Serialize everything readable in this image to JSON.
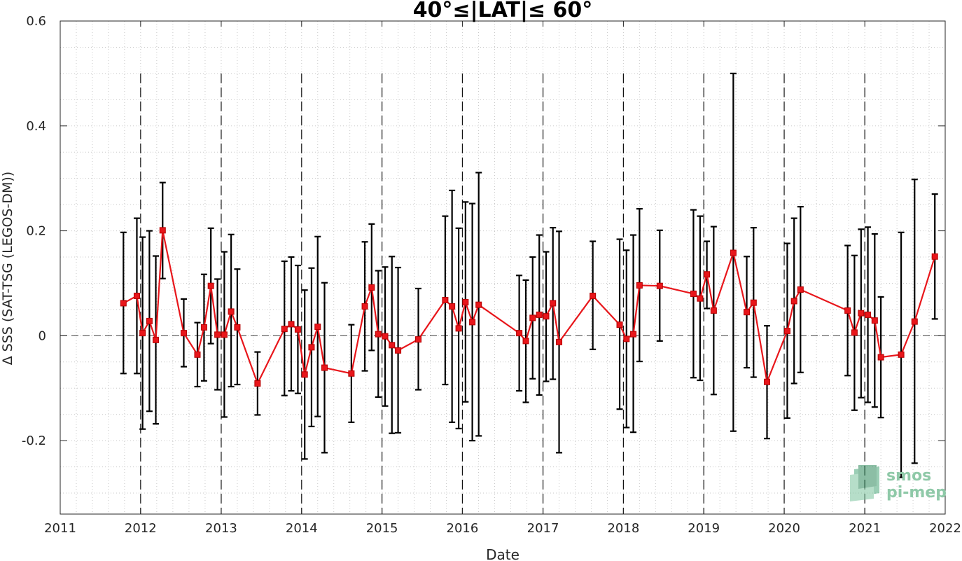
{
  "chart_data": {
    "type": "line",
    "title": "40°≤|LAT|≤ 60°",
    "xlabel": "Date",
    "ylabel": "Δ SSS (SAT-TSG (LEGOS-DM))",
    "xlim": [
      "2011-01-01",
      "2022-01-01"
    ],
    "ylim": [
      -0.34,
      0.6
    ],
    "x_ticks": [
      "2011",
      "2012",
      "2013",
      "2014",
      "2015",
      "2016",
      "2017",
      "2018",
      "2019",
      "2020",
      "2021",
      "2022"
    ],
    "y_ticks": [
      -0.2,
      0,
      0.2,
      0.4,
      0.6
    ],
    "y_tick_labels": [
      "-0.2",
      "0",
      "0.2",
      "0.4",
      "0.6"
    ],
    "grid": "minor dotted",
    "year_dividers": [
      "2012",
      "2013",
      "2014",
      "2015",
      "2016",
      "2017",
      "2018",
      "2019",
      "2020",
      "2021"
    ],
    "zero_line": 0,
    "series": [
      {
        "color": "#e8161b",
        "marker": "square",
        "errorbar_color": "#000000",
        "points": [
          {
            "x": "2011-10-15",
            "y": 0.062,
            "lo": -0.072,
            "hi": 0.197
          },
          {
            "x": "2011-12-15",
            "y": 0.076,
            "lo": -0.072,
            "hi": 0.224
          },
          {
            "x": "2012-01-10",
            "y": 0.005,
            "lo": -0.178,
            "hi": 0.188
          },
          {
            "x": "2012-02-10",
            "y": 0.028,
            "lo": -0.144,
            "hi": 0.2
          },
          {
            "x": "2012-03-10",
            "y": -0.008,
            "lo": -0.168,
            "hi": 0.152
          },
          {
            "x": "2012-04-10",
            "y": 0.201,
            "lo": 0.109,
            "hi": 0.292
          },
          {
            "x": "2012-07-15",
            "y": 0.005,
            "lo": -0.059,
            "hi": 0.07
          },
          {
            "x": "2012-09-15",
            "y": -0.036,
            "lo": -0.097,
            "hi": 0.025
          },
          {
            "x": "2012-10-15",
            "y": 0.016,
            "lo": -0.086,
            "hi": 0.117
          },
          {
            "x": "2012-11-15",
            "y": 0.095,
            "lo": -0.015,
            "hi": 0.205
          },
          {
            "x": "2012-12-15",
            "y": 0.002,
            "lo": -0.103,
            "hi": 0.108
          },
          {
            "x": "2013-01-15",
            "y": 0.002,
            "lo": -0.155,
            "hi": 0.16
          },
          {
            "x": "2013-02-15",
            "y": 0.046,
            "lo": -0.097,
            "hi": 0.193
          },
          {
            "x": "2013-03-15",
            "y": 0.016,
            "lo": -0.093,
            "hi": 0.127
          },
          {
            "x": "2013-06-15",
            "y": -0.091,
            "lo": -0.151,
            "hi": -0.031
          },
          {
            "x": "2013-10-15",
            "y": 0.013,
            "lo": -0.114,
            "hi": 0.142
          },
          {
            "x": "2013-11-15",
            "y": 0.022,
            "lo": -0.105,
            "hi": 0.15
          },
          {
            "x": "2013-12-15",
            "y": 0.012,
            "lo": -0.11,
            "hi": 0.134
          },
          {
            "x": "2014-01-15",
            "y": -0.074,
            "lo": -0.235,
            "hi": 0.087
          },
          {
            "x": "2014-02-15",
            "y": -0.022,
            "lo": -0.173,
            "hi": 0.129
          },
          {
            "x": "2014-03-15",
            "y": 0.017,
            "lo": -0.154,
            "hi": 0.189
          },
          {
            "x": "2014-04-15",
            "y": -0.061,
            "lo": -0.223,
            "hi": 0.101
          },
          {
            "x": "2014-08-15",
            "y": -0.072,
            "lo": -0.165,
            "hi": 0.021
          },
          {
            "x": "2014-10-15",
            "y": 0.056,
            "lo": -0.067,
            "hi": 0.179
          },
          {
            "x": "2014-11-15",
            "y": 0.092,
            "lo": -0.028,
            "hi": 0.213
          },
          {
            "x": "2014-12-15",
            "y": 0.003,
            "lo": -0.117,
            "hi": 0.124
          },
          {
            "x": "2015-01-15",
            "y": -0.001,
            "lo": -0.134,
            "hi": 0.131
          },
          {
            "x": "2015-02-15",
            "y": -0.018,
            "lo": -0.186,
            "hi": 0.151
          },
          {
            "x": "2015-03-15",
            "y": -0.028,
            "lo": -0.185,
            "hi": 0.13
          },
          {
            "x": "2015-06-15",
            "y": -0.007,
            "lo": -0.103,
            "hi": 0.09
          },
          {
            "x": "2015-10-15",
            "y": 0.068,
            "lo": -0.093,
            "hi": 0.228
          },
          {
            "x": "2015-11-15",
            "y": 0.056,
            "lo": -0.165,
            "hi": 0.277
          },
          {
            "x": "2015-12-15",
            "y": 0.014,
            "lo": -0.177,
            "hi": 0.205
          },
          {
            "x": "2016-01-15",
            "y": 0.064,
            "lo": -0.126,
            "hi": 0.255
          },
          {
            "x": "2016-02-15",
            "y": 0.026,
            "lo": -0.2,
            "hi": 0.252
          },
          {
            "x": "2016-03-15",
            "y": 0.059,
            "lo": -0.191,
            "hi": 0.311
          },
          {
            "x": "2016-09-15",
            "y": 0.005,
            "lo": -0.105,
            "hi": 0.115
          },
          {
            "x": "2016-10-15",
            "y": -0.01,
            "lo": -0.127,
            "hi": 0.106
          },
          {
            "x": "2016-11-15",
            "y": 0.034,
            "lo": -0.082,
            "hi": 0.15
          },
          {
            "x": "2016-12-15",
            "y": 0.04,
            "lo": -0.113,
            "hi": 0.192
          },
          {
            "x": "2017-01-15",
            "y": 0.037,
            "lo": -0.087,
            "hi": 0.16
          },
          {
            "x": "2017-02-15",
            "y": 0.062,
            "lo": -0.083,
            "hi": 0.206
          },
          {
            "x": "2017-03-15",
            "y": -0.012,
            "lo": -0.223,
            "hi": 0.199
          },
          {
            "x": "2017-08-15",
            "y": 0.076,
            "lo": -0.026,
            "hi": 0.18
          },
          {
            "x": "2017-12-15",
            "y": 0.021,
            "lo": -0.14,
            "hi": 0.184
          },
          {
            "x": "2018-01-15",
            "y": -0.006,
            "lo": -0.175,
            "hi": 0.163
          },
          {
            "x": "2018-02-15",
            "y": 0.003,
            "lo": -0.184,
            "hi": 0.192
          },
          {
            "x": "2018-03-15",
            "y": 0.096,
            "lo": -0.049,
            "hi": 0.242
          },
          {
            "x": "2018-06-15",
            "y": 0.095,
            "lo": -0.01,
            "hi": 0.201
          },
          {
            "x": "2018-11-15",
            "y": 0.08,
            "lo": -0.08,
            "hi": 0.24
          },
          {
            "x": "2018-12-15",
            "y": 0.071,
            "lo": -0.085,
            "hi": 0.228
          },
          {
            "x": "2019-01-15",
            "y": 0.117,
            "lo": 0.052,
            "hi": 0.18
          },
          {
            "x": "2019-02-15",
            "y": 0.048,
            "lo": -0.112,
            "hi": 0.208
          },
          {
            "x": "2019-05-15",
            "y": 0.158,
            "lo": -0.182,
            "hi": 0.5
          },
          {
            "x": "2019-07-15",
            "y": 0.045,
            "lo": -0.061,
            "hi": 0.151
          },
          {
            "x": "2019-08-15",
            "y": 0.063,
            "lo": -0.079,
            "hi": 0.206
          },
          {
            "x": "2019-10-15",
            "y": -0.088,
            "lo": -0.196,
            "hi": 0.019
          },
          {
            "x": "2020-01-15",
            "y": 0.009,
            "lo": -0.157,
            "hi": 0.176
          },
          {
            "x": "2020-02-15",
            "y": 0.066,
            "lo": -0.091,
            "hi": 0.224
          },
          {
            "x": "2020-03-15",
            "y": 0.088,
            "lo": -0.07,
            "hi": 0.246
          },
          {
            "x": "2020-10-15",
            "y": 0.048,
            "lo": -0.076,
            "hi": 0.172
          },
          {
            "x": "2020-11-15",
            "y": 0.006,
            "lo": -0.142,
            "hi": 0.153
          },
          {
            "x": "2020-12-15",
            "y": 0.043,
            "lo": -0.118,
            "hi": 0.203
          },
          {
            "x": "2021-01-15",
            "y": 0.04,
            "lo": -0.127,
            "hi": 0.207
          },
          {
            "x": "2021-02-15",
            "y": 0.029,
            "lo": -0.136,
            "hi": 0.194
          },
          {
            "x": "2021-03-15",
            "y": -0.041,
            "lo": -0.156,
            "hi": 0.074
          },
          {
            "x": "2021-06-15",
            "y": -0.036,
            "lo": -0.27,
            "hi": 0.197
          },
          {
            "x": "2021-08-15",
            "y": 0.027,
            "lo": -0.243,
            "hi": 0.298
          },
          {
            "x": "2021-11-15",
            "y": 0.151,
            "lo": 0.032,
            "hi": 0.27
          }
        ]
      }
    ]
  },
  "logo": {
    "line1": "smos",
    "line2": "pi-mep",
    "color": "#3fa36b"
  }
}
